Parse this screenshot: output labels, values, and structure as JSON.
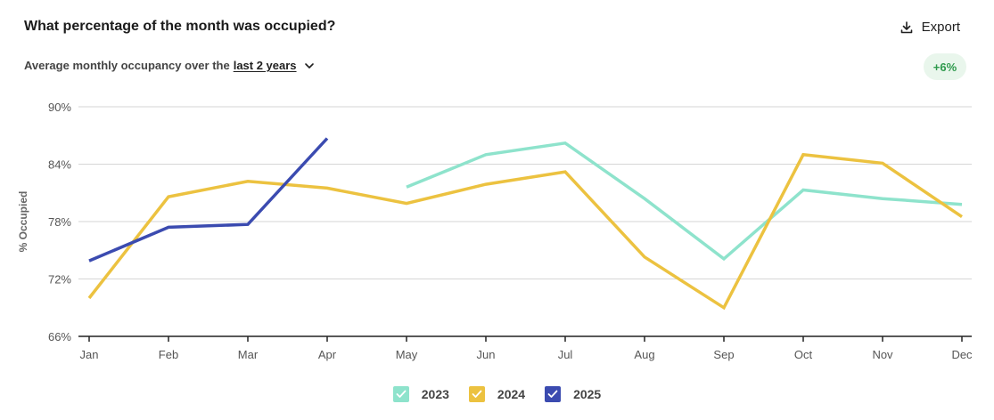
{
  "header": {
    "title": "What percentage of the month was occupied?",
    "export_label": "Export",
    "subtitle_prefix": "Average monthly occupancy over the",
    "range_label": "last 2 years",
    "change_badge": "+6%"
  },
  "icons": {
    "export": "download-icon",
    "range": "chevron-down-icon",
    "legend": "checkmark-icon"
  },
  "colors": {
    "series_2023": "#8ee3cc",
    "series_2024": "#ecc240",
    "series_2025": "#3b4bb0",
    "badge_bg": "#e9f6ec",
    "badge_text": "#2f9a4d"
  },
  "chart_data": {
    "type": "line",
    "ylabel": "% Occupied",
    "xlabel": "",
    "categories": [
      "Jan",
      "Feb",
      "Mar",
      "Apr",
      "May",
      "Jun",
      "Jul",
      "Aug",
      "Sep",
      "Oct",
      "Nov",
      "Dec"
    ],
    "ylim": [
      66,
      90
    ],
    "yticks": [
      66,
      72,
      78,
      84,
      90
    ],
    "ytick_labels": [
      "66%",
      "72%",
      "78%",
      "84%",
      "90%"
    ],
    "grid": true,
    "legend_position": "bottom-center",
    "series": [
      {
        "name": "2023",
        "color": "#8ee3cc",
        "values": [
          null,
          null,
          null,
          null,
          81.6,
          85.0,
          86.2,
          80.4,
          74.1,
          81.3,
          80.4,
          79.8
        ]
      },
      {
        "name": "2024",
        "color": "#ecc240",
        "values": [
          70.0,
          80.6,
          82.2,
          81.5,
          79.9,
          81.9,
          83.2,
          74.3,
          69.0,
          85.0,
          84.1,
          78.5
        ]
      },
      {
        "name": "2025",
        "color": "#3b4bb0",
        "values": [
          73.9,
          77.4,
          77.7,
          86.7,
          null,
          null,
          null,
          null,
          null,
          null,
          null,
          null
        ]
      }
    ]
  }
}
